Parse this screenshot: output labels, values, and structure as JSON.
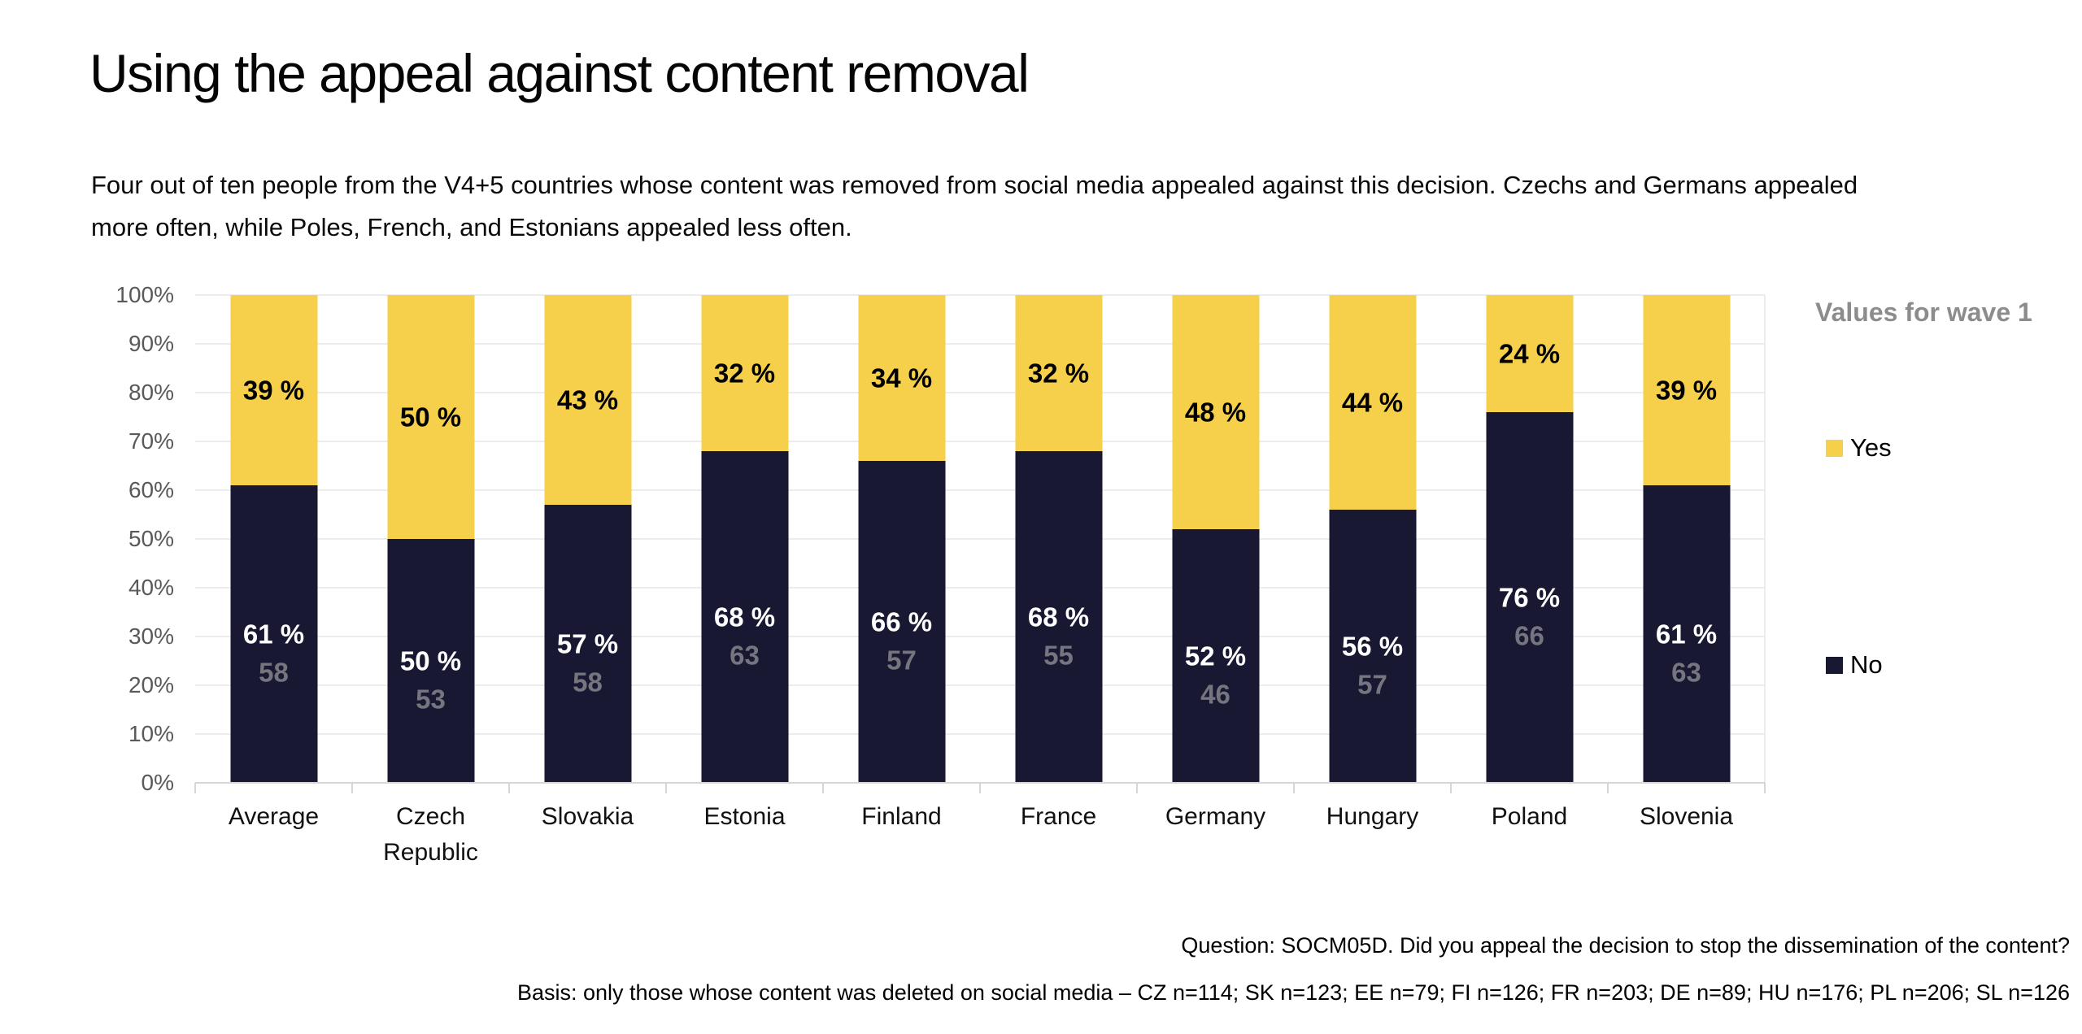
{
  "page": {
    "title": "Using the appeal against content removal",
    "subtitle": "Four out of ten people from the V4+5 countries whose content was removed from social media appealed against this decision. Czechs and Germans appealed more often, while Poles, French, and Estonians appealed less often.",
    "footnotes": {
      "question": "Question: SOCM05D. Did you appeal the decision to stop the dissemination of the content?",
      "basis": "Basis: only those whose content was deleted on social media – CZ n=114; SK n=123; EE n=79; FI n=126; FR n=203; DE n=89; HU n=176; PL n=206; SL n=126"
    }
  },
  "chart_data": {
    "type": "bar",
    "stacked": true,
    "title": "Using the appeal against content removal",
    "categories": [
      "Average",
      "Czech Republic",
      "Slovakia",
      "Estonia",
      "Finland",
      "France",
      "Germany",
      "Hungary",
      "Poland",
      "Slovenia"
    ],
    "series": [
      {
        "name": "Yes",
        "color": "#F6D04B",
        "label_color": "#000000",
        "label_suffix": " %",
        "values": [
          39,
          50,
          43,
          32,
          34,
          32,
          48,
          44,
          24,
          39
        ]
      },
      {
        "name": "No",
        "color": "#191832",
        "label_color": "#FFFFFF",
        "label_suffix": " %",
        "values": [
          61,
          50,
          57,
          68,
          66,
          68,
          52,
          56,
          76,
          61
        ]
      }
    ],
    "wave1_labels": {
      "name": "Values for wave 1",
      "attached_to_series": "No",
      "label_color": "#75757F",
      "values": [
        58,
        53,
        58,
        63,
        57,
        55,
        46,
        57,
        66,
        63
      ]
    },
    "y_axis": {
      "min": 0,
      "max": 100,
      "tick_step": 10,
      "tick_labels": [
        "0%",
        "10%",
        "20%",
        "30%",
        "40%",
        "50%",
        "60%",
        "70%",
        "80%",
        "90%",
        "100%"
      ],
      "grid": true
    },
    "legend": {
      "position": "right",
      "title": "Values for wave 1",
      "items": [
        "Yes",
        "No"
      ]
    }
  },
  "ui_colors": {
    "grid": "#ECECEC",
    "axis_line": "#D6D6D6",
    "y_tick_label": "#595959",
    "legend_title": "#8C8C8C"
  }
}
